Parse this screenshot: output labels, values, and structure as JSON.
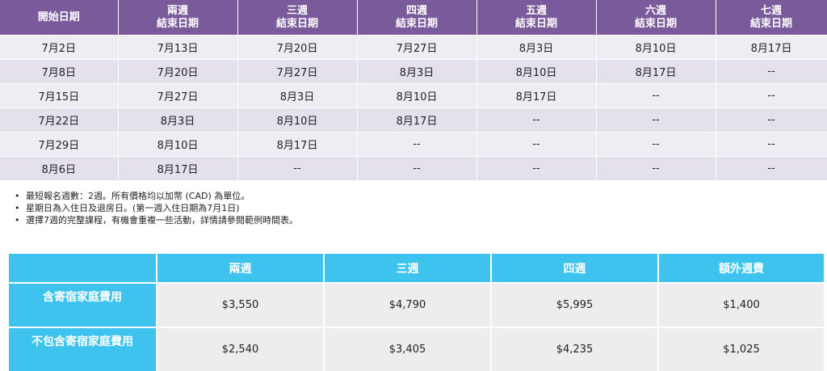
{
  "schedule": {
    "headers": [
      [
        "開始日期"
      ],
      [
        "兩週",
        "結束日期"
      ],
      [
        "三週",
        "結束日期"
      ],
      [
        "四週",
        "結束日期"
      ],
      [
        "五週",
        "結束日期"
      ],
      [
        "六週",
        "結束日期"
      ],
      [
        "七週",
        "結束日期"
      ]
    ],
    "rows": [
      [
        "7月2日",
        "7月13日",
        "7月20日",
        "7月27日",
        "8月3日",
        "8月10日",
        "8月17日"
      ],
      [
        "7月8日",
        "7月20日",
        "7月27日",
        "8月3日",
        "8月10日",
        "8月17日",
        "--"
      ],
      [
        "7月15日",
        "7月27日",
        "8月3日",
        "8月10日",
        "8月17日",
        "--",
        "--"
      ],
      [
        "7月22日",
        "8月3日",
        "8月10日",
        "8月17日",
        "--",
        "--",
        "--"
      ],
      [
        "7月29日",
        "8月10日",
        "8月17日",
        "--",
        "--",
        "--",
        "--"
      ],
      [
        "8月6日",
        "8月17日",
        "--",
        "--",
        "--",
        "--",
        "--"
      ]
    ]
  },
  "notes": [
    "最短報名週數：2週。所有價格均以加幣 (CAD) 為單位。",
    "星期日為入住日及退房日。(第一週入住日期為7月1日)",
    "選擇7週的完整課程，有機會重複一些活動，詳情請參閱範例時間表。"
  ],
  "bullet": "•",
  "pricing": {
    "corner": "",
    "headers": [
      "兩週",
      "三週",
      "四週",
      "額外週費"
    ],
    "rows": [
      {
        "label": "含寄宿家庭費用",
        "values": [
          "$3,550",
          "$4,790",
          "$5,995",
          "$1,400"
        ]
      },
      {
        "label": "不包含寄宿家庭費用",
        "values": [
          "$2,540",
          "$3,405",
          "$4,235",
          "$1,025"
        ]
      }
    ]
  },
  "colors": {
    "schedule_header": "#7b5a9b",
    "schedule_row_light": "#efedf4",
    "schedule_row_dark": "#e4e0ec",
    "pricing_header": "#3ec3ee",
    "pricing_cell": "#ededee"
  }
}
